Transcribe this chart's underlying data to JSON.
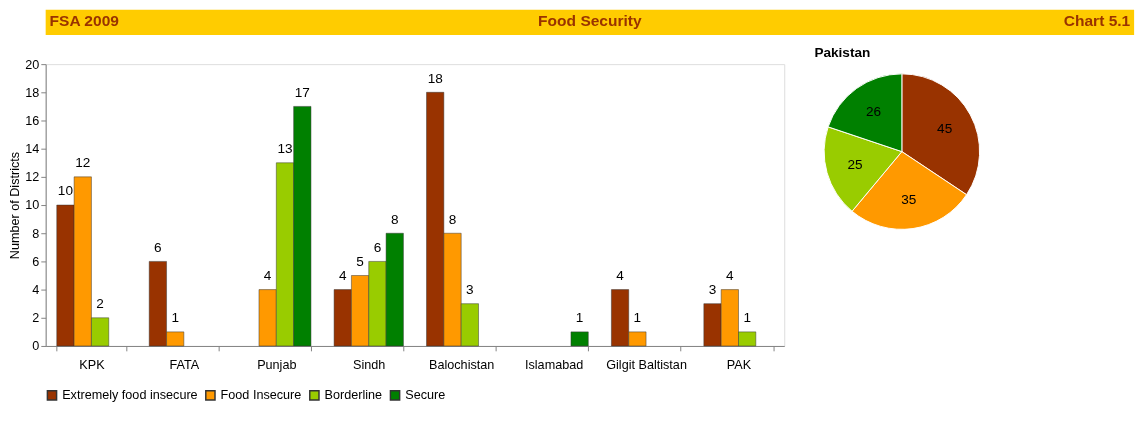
{
  "chart_data": [
    {
      "type": "bar",
      "title": "Food Security",
      "annotations": [
        "FSA 2009",
        "Chart 5.1"
      ],
      "ylabel": "Number of Districts",
      "categories": [
        "KPK",
        "FATA",
        "Punjab",
        "Sindh",
        "Balochistan",
        "Islamabad",
        "Gilgit Baltistan",
        "PAK"
      ],
      "series": [
        {
          "name": "Extremely food insecure",
          "color": "#993300",
          "values": [
            10,
            6,
            null,
            4,
            18,
            null,
            4,
            3
          ]
        },
        {
          "name": "Food Insecure",
          "color": "#ff9900",
          "values": [
            12,
            1,
            4,
            5,
            8,
            null,
            1,
            4
          ]
        },
        {
          "name": "Borderline",
          "color": "#99cc00",
          "values": [
            2,
            null,
            13,
            6,
            3,
            null,
            null,
            1
          ]
        },
        {
          "name": "Secure",
          "color": "#008000",
          "values": [
            null,
            null,
            17,
            8,
            null,
            1,
            null,
            null
          ]
        }
      ],
      "ylim": [
        0,
        20
      ],
      "yticks": [
        0,
        2,
        4,
        6,
        8,
        10,
        12,
        14,
        16,
        18,
        20
      ],
      "data_labels": true,
      "legend": "bottom",
      "grid": false
    },
    {
      "type": "pie",
      "title": "Pakistan",
      "categories": [
        null,
        null,
        null,
        null
      ],
      "values": [
        45,
        35,
        25,
        26
      ],
      "colors": [
        "#993300",
        "#ff9900",
        "#99cc00",
        "#008000"
      ],
      "data_labels": true
    }
  ]
}
